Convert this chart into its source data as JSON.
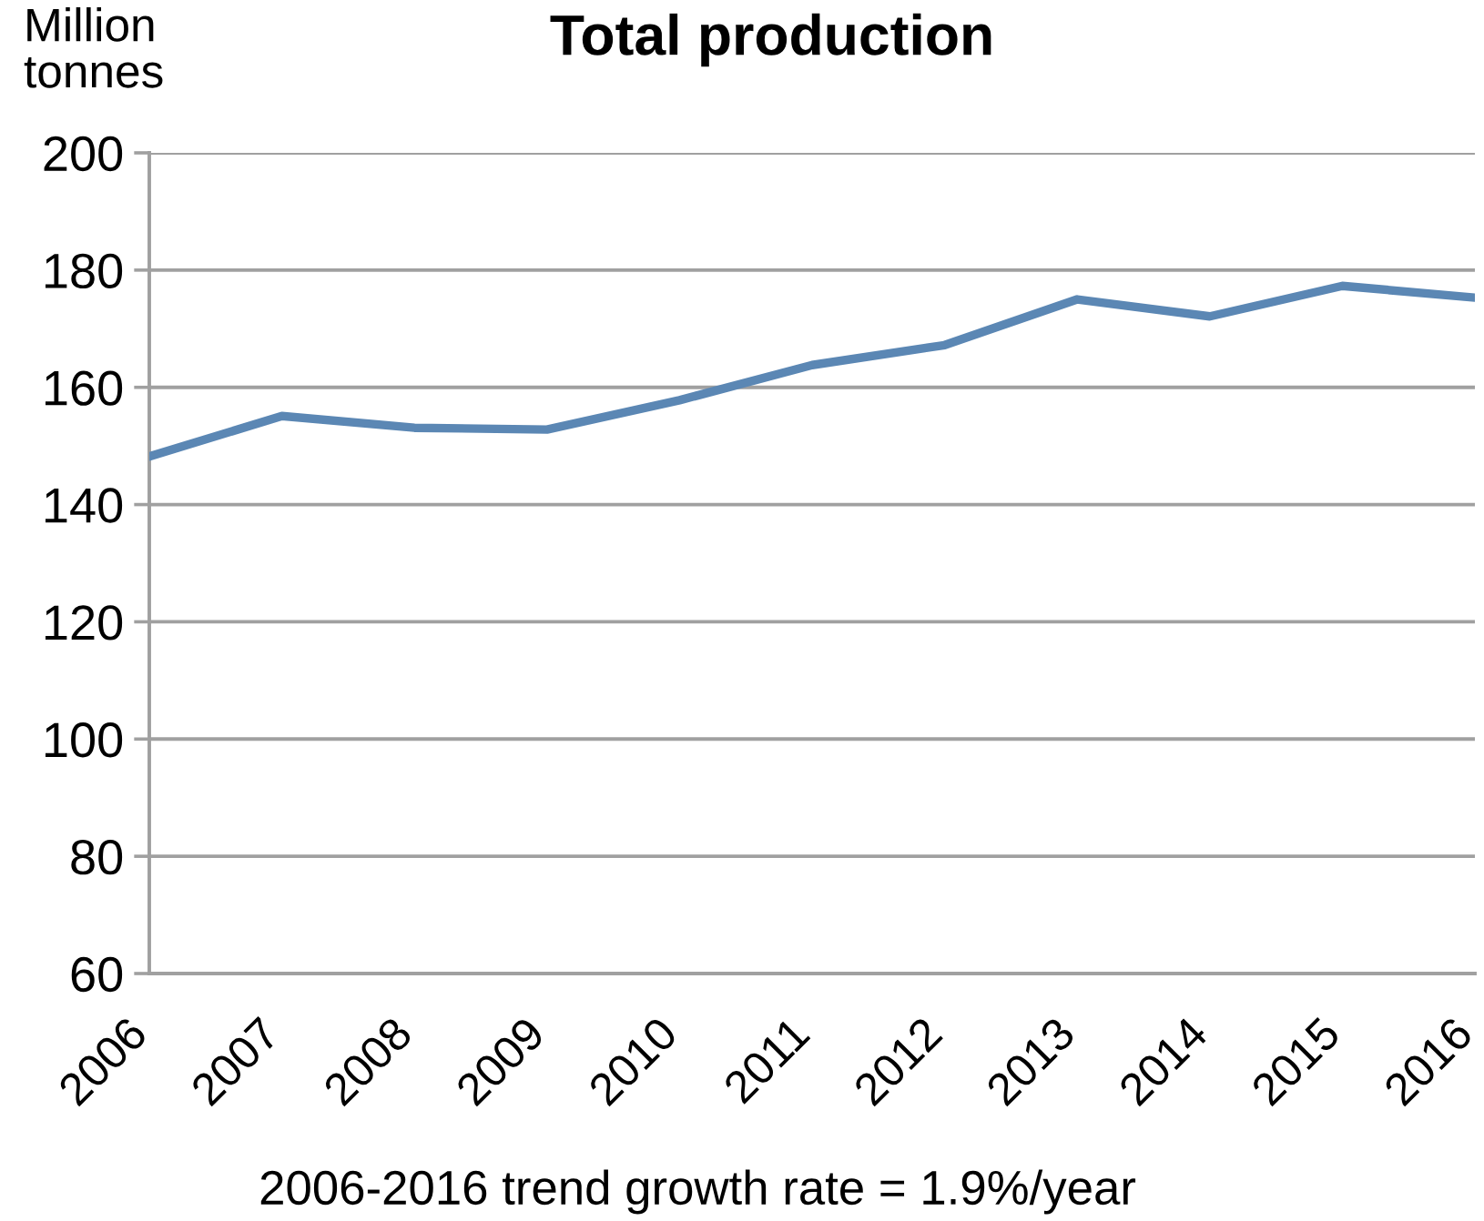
{
  "chart_data": {
    "type": "line",
    "title": "Total production",
    "ylabel": "Million\ntonnes",
    "annotations": [
      "2006-2016 trend growth rate = 1.9%/year"
    ],
    "categories": [
      "2006",
      "2007",
      "2008",
      "2009",
      "2010",
      "2011",
      "2012",
      "2013",
      "2014",
      "2015",
      "2016"
    ],
    "series": [
      {
        "color": "#5b87b4",
        "values": [
          148.2,
          155.1,
          153.1,
          152.8,
          157.8,
          163.8,
          167.2,
          175.0,
          172.1,
          177.3,
          175.3
        ]
      }
    ],
    "ylim": [
      60,
      200
    ],
    "yticks": [
      60,
      80,
      100,
      120,
      140,
      160,
      180,
      200
    ],
    "grid": "y",
    "marker": "none",
    "line_style": "solid"
  }
}
